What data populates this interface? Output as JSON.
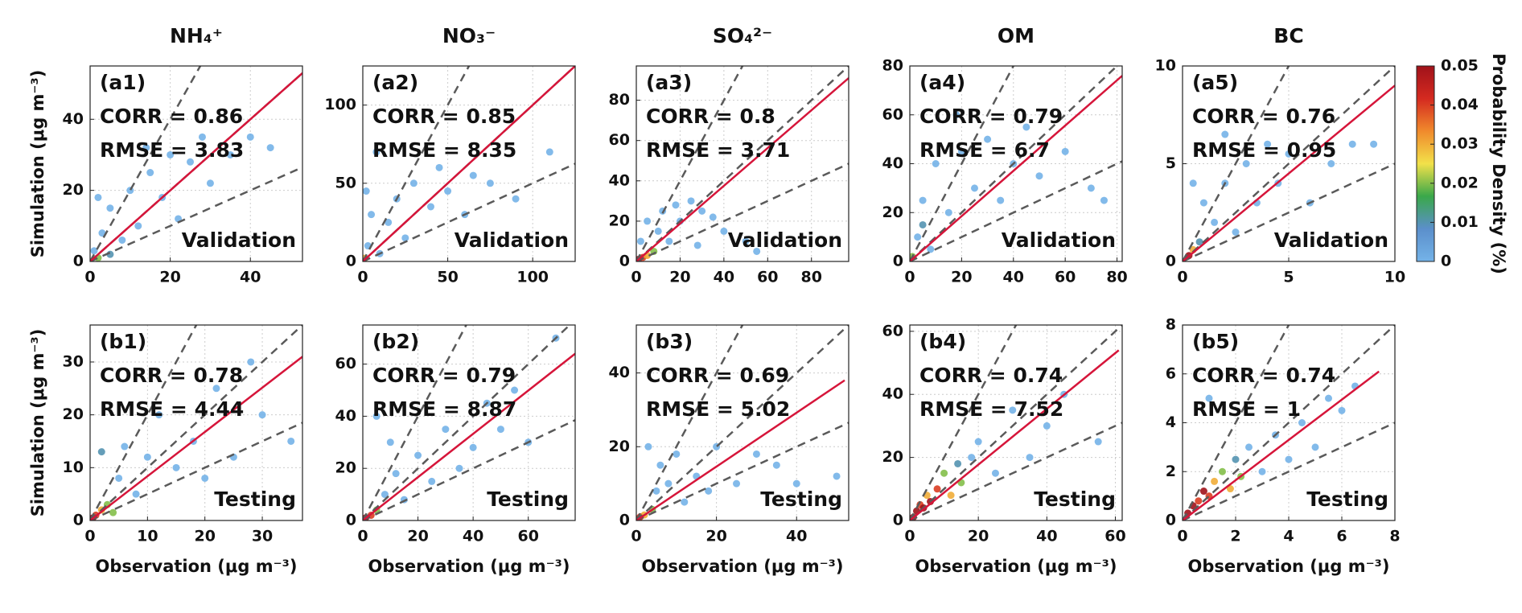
{
  "colorbar": {
    "label": "Probability Density (%)",
    "lim": [
      0,
      0.05
    ],
    "ticks": [
      0,
      0.01,
      0.02,
      0.03,
      0.04,
      0.05
    ],
    "colors": [
      "#74b3e8",
      "#5b8fcb",
      "#3aa84a",
      "#f2e14a",
      "#f08a2c",
      "#d42a20",
      "#a0121a"
    ]
  },
  "chart_data": [
    {
      "type": "scatter",
      "title": "NH₄⁺",
      "ylabel": "Simulation (μg m⁻³)",
      "annotations": {
        "panel": "(a1)",
        "corr": "CORR = 0.86",
        "rmse": "RMSE = 3.83",
        "set": "Validation"
      },
      "xlim": [
        0,
        53
      ],
      "ylim": [
        0,
        55
      ],
      "xticks": [
        0,
        20,
        40
      ],
      "yticks": [
        0,
        20,
        40
      ],
      "grid": true,
      "points": {
        "x": [
          2,
          1,
          3,
          5,
          8,
          10,
          12,
          15,
          18,
          20,
          22,
          25,
          28,
          30,
          35,
          40,
          45,
          5,
          14,
          2
        ],
        "y": [
          1,
          3,
          8,
          15,
          6,
          20,
          10,
          25,
          18,
          30,
          12,
          28,
          35,
          22,
          30,
          35,
          32,
          2,
          32,
          18
        ],
        "density": [
          0.02,
          0,
          0,
          0,
          0,
          0,
          0,
          0,
          0,
          0,
          0,
          0,
          0,
          0,
          0,
          0,
          0,
          0.01,
          0,
          0
        ]
      },
      "fit": {
        "color": "#d6153a",
        "x": [
          0,
          53
        ],
        "y": [
          0,
          53
        ]
      },
      "reference": {
        "color": "#5a5a5a",
        "slopes": [
          2,
          1,
          0.5
        ]
      }
    },
    {
      "type": "scatter",
      "title": "NO₃⁻",
      "annotations": {
        "panel": "(a2)",
        "corr": "CORR = 0.85",
        "rmse": "RMSE = 8.35",
        "set": "Validation"
      },
      "xlim": [
        0,
        125
      ],
      "ylim": [
        0,
        125
      ],
      "xticks": [
        0,
        50,
        100
      ],
      "yticks": [
        0,
        50,
        100
      ],
      "grid": true,
      "points": {
        "x": [
          1,
          3,
          5,
          10,
          15,
          20,
          25,
          30,
          40,
          45,
          50,
          60,
          65,
          75,
          90,
          110,
          8,
          2
        ],
        "y": [
          2,
          10,
          30,
          5,
          25,
          40,
          15,
          50,
          35,
          60,
          45,
          30,
          55,
          50,
          40,
          70,
          70,
          45
        ],
        "density": [
          0.03,
          0,
          0,
          0,
          0,
          0,
          0,
          0,
          0,
          0,
          0,
          0,
          0,
          0,
          0,
          0,
          0,
          0
        ]
      },
      "fit": {
        "color": "#d6153a",
        "x": [
          0,
          125
        ],
        "y": [
          0,
          125
        ]
      },
      "reference": {
        "color": "#5a5a5a",
        "slopes": [
          2,
          1,
          0.5
        ]
      }
    },
    {
      "type": "scatter",
      "title": "SO₄²⁻",
      "annotations": {
        "panel": "(a3)",
        "corr": "CORR = 0.8",
        "rmse": "RMSE = 3.71",
        "set": "Validation"
      },
      "xlim": [
        0,
        97
      ],
      "ylim": [
        0,
        97
      ],
      "xticks": [
        0,
        20,
        40,
        60,
        80
      ],
      "yticks": [
        0,
        20,
        40,
        60,
        80
      ],
      "grid": true,
      "points": {
        "x": [
          1,
          3,
          5,
          8,
          10,
          12,
          15,
          18,
          20,
          25,
          30,
          35,
          40,
          50,
          5,
          2,
          28,
          55
        ],
        "y": [
          1,
          2,
          3,
          5,
          15,
          25,
          10,
          28,
          20,
          30,
          25,
          22,
          15,
          10,
          20,
          10,
          8,
          5
        ],
        "density": [
          0.05,
          0.04,
          0.03,
          0.02,
          0,
          0,
          0,
          0,
          0,
          0,
          0,
          0,
          0,
          0,
          0,
          0,
          0,
          0
        ]
      },
      "fit": {
        "color": "#d6153a",
        "x": [
          0,
          97
        ],
        "y": [
          0,
          91
        ]
      },
      "reference": {
        "color": "#5a5a5a",
        "slopes": [
          2,
          1,
          0.5
        ]
      }
    },
    {
      "type": "scatter",
      "title": "OM",
      "annotations": {
        "panel": "(a4)",
        "corr": "CORR = 0.79",
        "rmse": "RMSE = 6.7",
        "set": "Validation"
      },
      "xlim": [
        0,
        82
      ],
      "ylim": [
        0,
        80
      ],
      "xticks": [
        0,
        20,
        40,
        60,
        80
      ],
      "yticks": [
        0,
        20,
        40,
        60,
        80
      ],
      "grid": true,
      "points": {
        "x": [
          1,
          3,
          5,
          8,
          10,
          15,
          20,
          25,
          30,
          35,
          40,
          45,
          50,
          60,
          70,
          75,
          18,
          5
        ],
        "y": [
          2,
          10,
          25,
          5,
          40,
          20,
          45,
          30,
          50,
          25,
          40,
          55,
          35,
          45,
          30,
          25,
          60,
          15
        ],
        "density": [
          0.02,
          0,
          0,
          0,
          0,
          0,
          0,
          0,
          0,
          0,
          0,
          0,
          0,
          0,
          0,
          0,
          0,
          0.01
        ]
      },
      "fit": {
        "color": "#d6153a",
        "x": [
          0,
          82
        ],
        "y": [
          0,
          76
        ]
      },
      "reference": {
        "color": "#5a5a5a",
        "slopes": [
          2,
          1,
          0.5
        ]
      }
    },
    {
      "type": "scatter",
      "title": "BC",
      "annotations": {
        "panel": "(a5)",
        "corr": "CORR = 0.76",
        "rmse": "RMSE = 0.95",
        "set": "Validation"
      },
      "xlim": [
        0,
        10
      ],
      "ylim": [
        0,
        10
      ],
      "xticks": [
        0,
        5,
        10
      ],
      "yticks": [
        0,
        5,
        10
      ],
      "grid": true,
      "points": {
        "x": [
          0.3,
          0.5,
          0.8,
          1,
          1.5,
          2,
          2.5,
          3,
          3.5,
          4,
          4.5,
          5,
          6,
          7,
          8,
          9,
          2,
          0.5
        ],
        "y": [
          0.3,
          0.6,
          1,
          3,
          2,
          4,
          1.5,
          5,
          3,
          6,
          4,
          5.5,
          3,
          5,
          6,
          6,
          6.5,
          4
        ],
        "density": [
          0.05,
          0.03,
          0.01,
          0,
          0,
          0,
          0,
          0,
          0,
          0,
          0,
          0,
          0,
          0,
          0,
          0,
          0,
          0
        ]
      },
      "fit": {
        "color": "#d6153a",
        "x": [
          0,
          10
        ],
        "y": [
          0,
          9
        ]
      },
      "reference": {
        "color": "#5a5a5a",
        "slopes": [
          2,
          1,
          0.5
        ]
      }
    },
    {
      "type": "scatter",
      "ylabel": "Simulation (μg m⁻³)",
      "xlabel": "Observation (μg m⁻³)",
      "annotations": {
        "panel": "(b1)",
        "corr": "CORR = 0.78",
        "rmse": "RMSE = 4.44",
        "set": "Testing"
      },
      "xlim": [
        0,
        37
      ],
      "ylim": [
        0,
        37
      ],
      "xticks": [
        0,
        10,
        20,
        30
      ],
      "yticks": [
        0,
        10,
        20,
        30
      ],
      "grid": true,
      "points": {
        "x": [
          0.5,
          1,
          2,
          3,
          4,
          5,
          6,
          8,
          10,
          12,
          15,
          18,
          20,
          22,
          25,
          28,
          30,
          35,
          2
        ],
        "y": [
          0.5,
          1,
          2,
          3,
          1.5,
          8,
          14,
          5,
          12,
          20,
          10,
          15,
          8,
          25,
          12,
          30,
          20,
          15,
          13
        ],
        "density": [
          0.05,
          0.04,
          0.03,
          0.02,
          0.02,
          0,
          0,
          0,
          0,
          0,
          0,
          0,
          0,
          0,
          0,
          0,
          0,
          0,
          0.01
        ]
      },
      "fit": {
        "color": "#d6153a",
        "x": [
          0,
          37
        ],
        "y": [
          0,
          31
        ]
      },
      "reference": {
        "color": "#5a5a5a",
        "slopes": [
          2,
          1,
          0.5
        ]
      }
    },
    {
      "type": "scatter",
      "xlabel": "Observation (μg m⁻³)",
      "annotations": {
        "panel": "(b2)",
        "corr": "CORR = 0.79",
        "rmse": "RMSE = 8.87",
        "set": "Testing"
      },
      "xlim": [
        0,
        77
      ],
      "ylim": [
        0,
        75
      ],
      "xticks": [
        0,
        20,
        40,
        60
      ],
      "yticks": [
        0,
        20,
        40,
        60
      ],
      "grid": true,
      "points": {
        "x": [
          1,
          3,
          5,
          8,
          10,
          12,
          15,
          20,
          25,
          30,
          35,
          40,
          45,
          50,
          55,
          60,
          70,
          5
        ],
        "y": [
          1,
          2,
          4,
          10,
          30,
          18,
          8,
          25,
          15,
          35,
          20,
          28,
          45,
          35,
          50,
          30,
          70,
          40
        ],
        "density": [
          0.05,
          0.04,
          0.02,
          0,
          0,
          0,
          0,
          0,
          0,
          0,
          0,
          0,
          0,
          0,
          0,
          0,
          0,
          0
        ]
      },
      "fit": {
        "color": "#d6153a",
        "x": [
          0,
          77
        ],
        "y": [
          0,
          64
        ]
      },
      "reference": {
        "color": "#5a5a5a",
        "slopes": [
          2,
          1,
          0.5
        ]
      }
    },
    {
      "type": "scatter",
      "xlabel": "Observation (μg m⁻³)",
      "annotations": {
        "panel": "(b3)",
        "corr": "CORR = 0.69",
        "rmse": "RMSE = 5.02",
        "set": "Testing"
      },
      "xlim": [
        0,
        53
      ],
      "ylim": [
        0,
        53
      ],
      "xticks": [
        0,
        20,
        40
      ],
      "yticks": [
        0,
        20,
        40
      ],
      "grid": true,
      "points": {
        "x": [
          0.5,
          1,
          2,
          4,
          5,
          6,
          8,
          10,
          12,
          15,
          18,
          20,
          25,
          30,
          35,
          40,
          50,
          3
        ],
        "y": [
          0.5,
          1,
          1.5,
          3,
          8,
          15,
          10,
          18,
          5,
          12,
          8,
          20,
          10,
          18,
          15,
          10,
          12,
          20
        ],
        "density": [
          0.05,
          0.04,
          0.03,
          0.02,
          0,
          0,
          0,
          0,
          0,
          0,
          0,
          0,
          0,
          0,
          0,
          0,
          0,
          0
        ]
      },
      "fit": {
        "color": "#d6153a",
        "x": [
          0,
          52
        ],
        "y": [
          0,
          38
        ]
      },
      "reference": {
        "color": "#5a5a5a",
        "slopes": [
          2,
          1,
          0.5
        ]
      }
    },
    {
      "type": "scatter",
      "xlabel": "Observation (μg m⁻³)",
      "annotations": {
        "panel": "(b4)",
        "corr": "CORR = 0.74",
        "rmse": "RMSE = 7.52",
        "set": "Testing"
      },
      "xlim": [
        0,
        62
      ],
      "ylim": [
        0,
        62
      ],
      "xticks": [
        0,
        20,
        40,
        60
      ],
      "yticks": [
        0,
        20,
        40,
        60
      ],
      "grid": true,
      "points": {
        "x": [
          1,
          2,
          3,
          4,
          5,
          6,
          8,
          10,
          12,
          14,
          15,
          18,
          20,
          25,
          30,
          35,
          40,
          45,
          55
        ],
        "y": [
          1,
          3,
          5,
          4,
          8,
          6,
          10,
          15,
          8,
          18,
          12,
          20,
          25,
          15,
          35,
          20,
          30,
          40,
          25
        ],
        "density": [
          0.05,
          0.05,
          0.04,
          0.05,
          0.03,
          0.05,
          0.04,
          0.02,
          0.03,
          0.01,
          0.02,
          0,
          0,
          0,
          0,
          0,
          0,
          0,
          0
        ]
      },
      "fit": {
        "color": "#d6153a",
        "x": [
          0,
          61
        ],
        "y": [
          0,
          54
        ]
      },
      "reference": {
        "color": "#5a5a5a",
        "slopes": [
          2,
          1,
          0.5
        ]
      }
    },
    {
      "type": "scatter",
      "xlabel": "Observation (μg m⁻³)",
      "annotations": {
        "panel": "(b5)",
        "corr": "CORR = 0.74",
        "rmse": "RMSE = 1",
        "set": "Testing"
      },
      "xlim": [
        0,
        8
      ],
      "ylim": [
        0,
        8
      ],
      "xticks": [
        0,
        2,
        4,
        6,
        8
      ],
      "yticks": [
        0,
        2,
        4,
        6,
        8
      ],
      "grid": true,
      "points": {
        "x": [
          0.2,
          0.4,
          0.6,
          0.8,
          1,
          1.2,
          1.5,
          1.8,
          2,
          2.2,
          2.5,
          3,
          3.5,
          4,
          4.5,
          5,
          5.5,
          6,
          6.5,
          1
        ],
        "y": [
          0.3,
          0.6,
          0.8,
          1.2,
          1,
          1.6,
          2,
          1.3,
          2.5,
          1.8,
          3,
          2,
          3.5,
          2.5,
          4,
          3,
          5,
          4.5,
          5.5,
          5
        ],
        "density": [
          0.05,
          0.05,
          0.04,
          0.05,
          0.04,
          0.03,
          0.02,
          0.03,
          0.01,
          0.02,
          0,
          0,
          0,
          0,
          0,
          0,
          0,
          0,
          0,
          0
        ]
      },
      "fit": {
        "color": "#d6153a",
        "x": [
          0,
          7.4
        ],
        "y": [
          0,
          6.1
        ]
      },
      "reference": {
        "color": "#5a5a5a",
        "slopes": [
          2,
          1,
          0.5
        ]
      }
    }
  ]
}
